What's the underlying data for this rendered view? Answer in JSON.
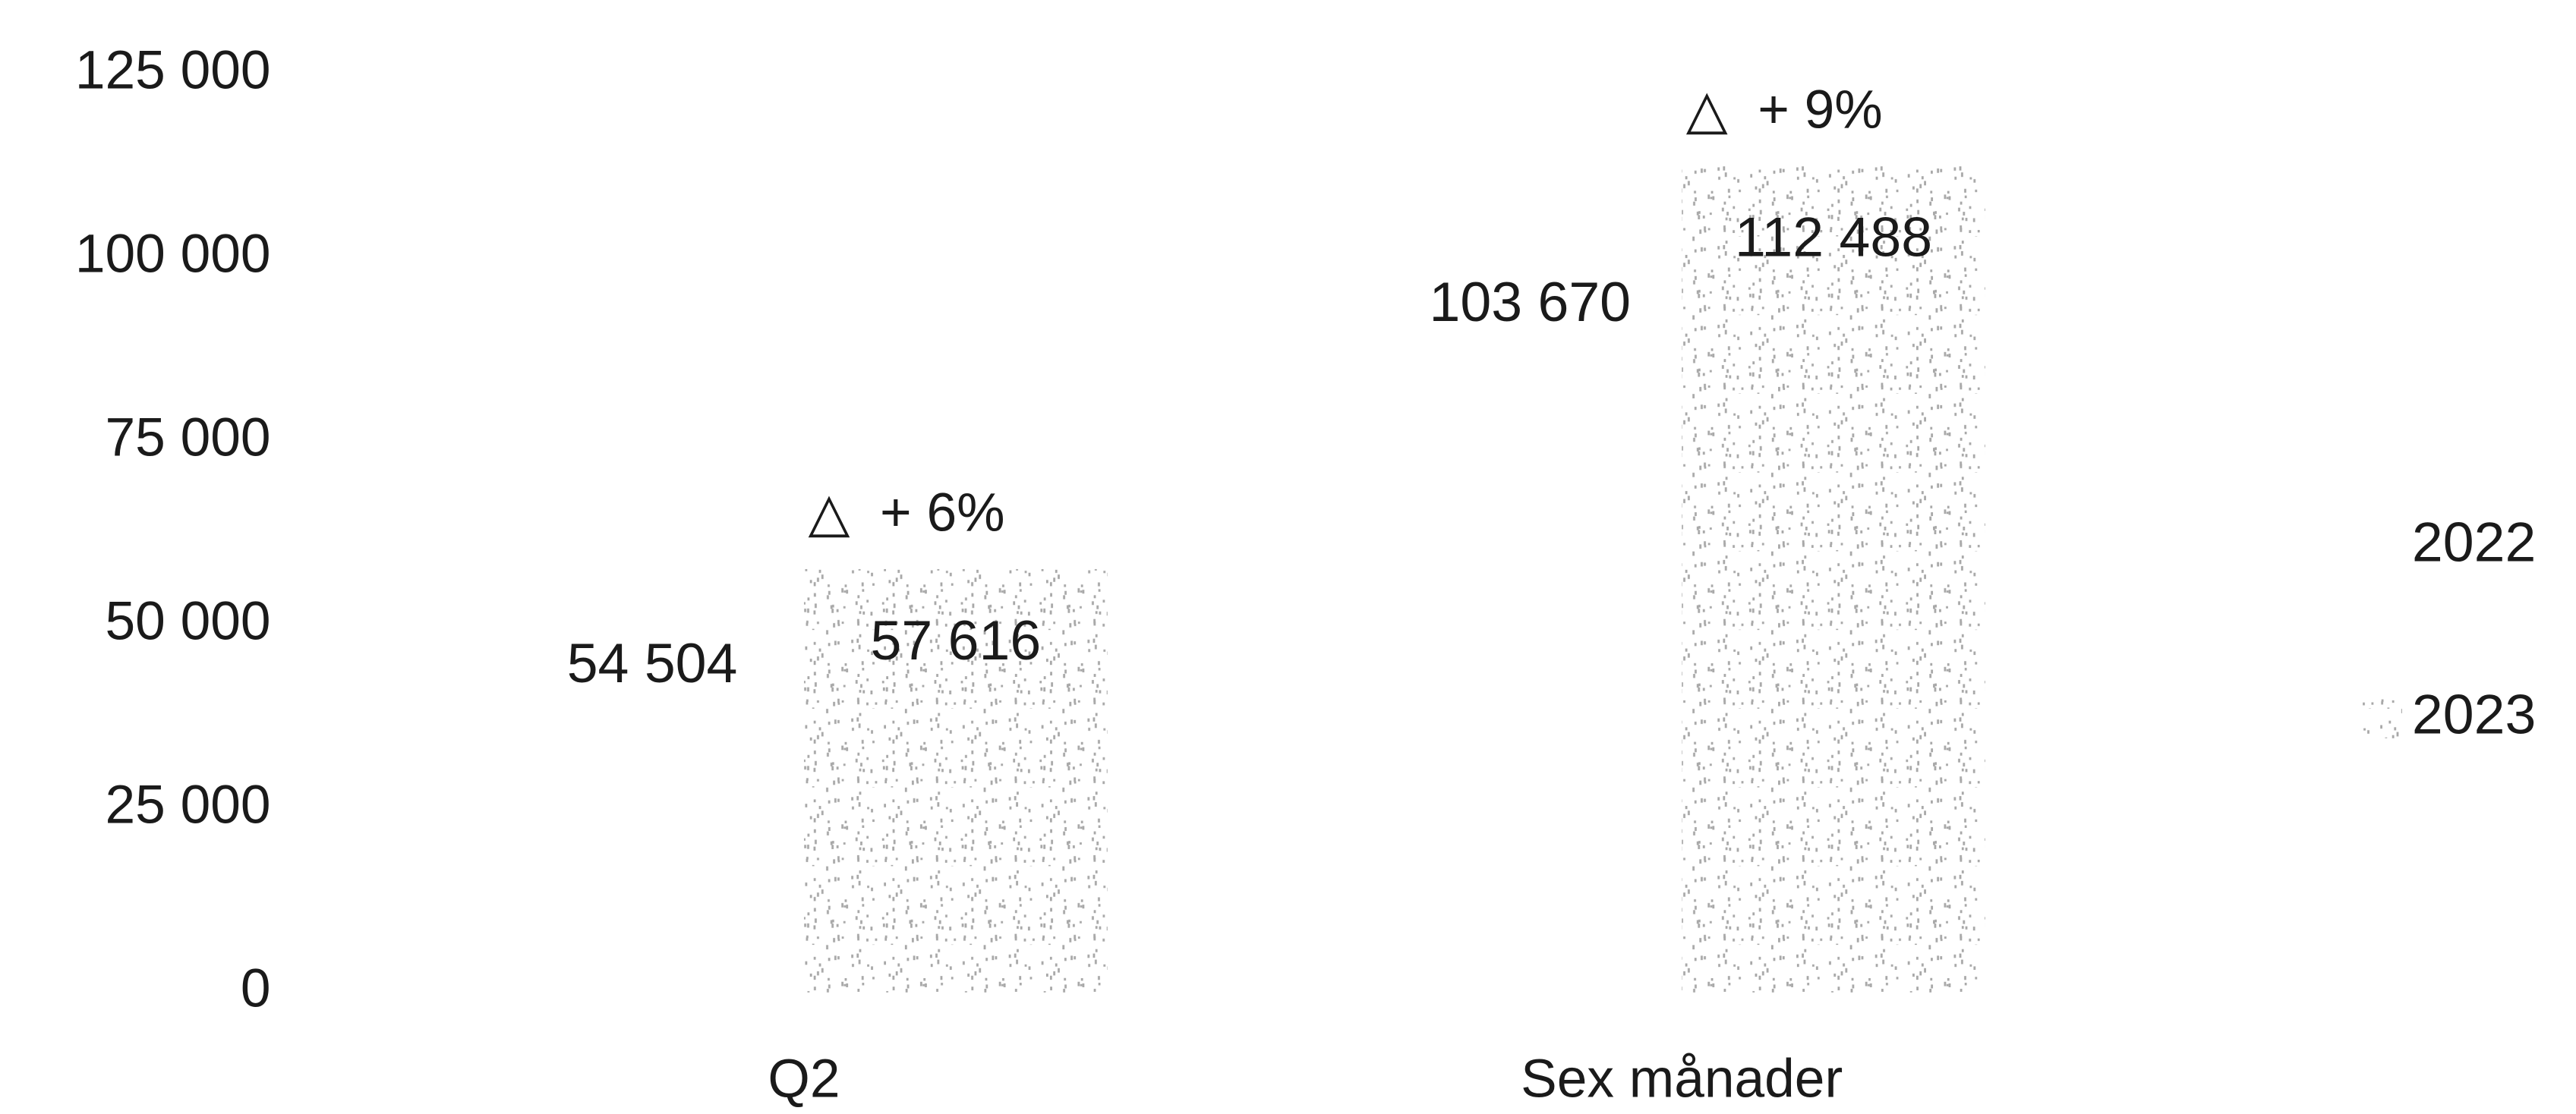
{
  "chart_data": {
    "type": "bar",
    "categories": [
      "Q2",
      "Sex månader"
    ],
    "series": [
      {
        "name": "2022",
        "color": "#ffffff",
        "values": [
          54504,
          103670
        ],
        "value_labels": [
          "54 504",
          "103 670"
        ]
      },
      {
        "name": "2023",
        "color": "#a8a8a8",
        "values": [
          57616,
          112488
        ],
        "value_labels": [
          "57 616",
          "112 488"
        ]
      }
    ],
    "annotations": [
      "△  + 6%",
      "△  + 9%"
    ],
    "ylim": [
      0,
      125000
    ],
    "yticks": [
      0,
      {
        "value": 25000,
        "label": "25 000"
      },
      {
        "value": 50000,
        "label": "50 000"
      },
      {
        "value": 75000,
        "label": "75 000"
      },
      {
        "value": 100000,
        "label": "100 000"
      },
      {
        "value": 125000,
        "label": "125 000"
      }
    ],
    "grid": false,
    "legend": "right"
  }
}
